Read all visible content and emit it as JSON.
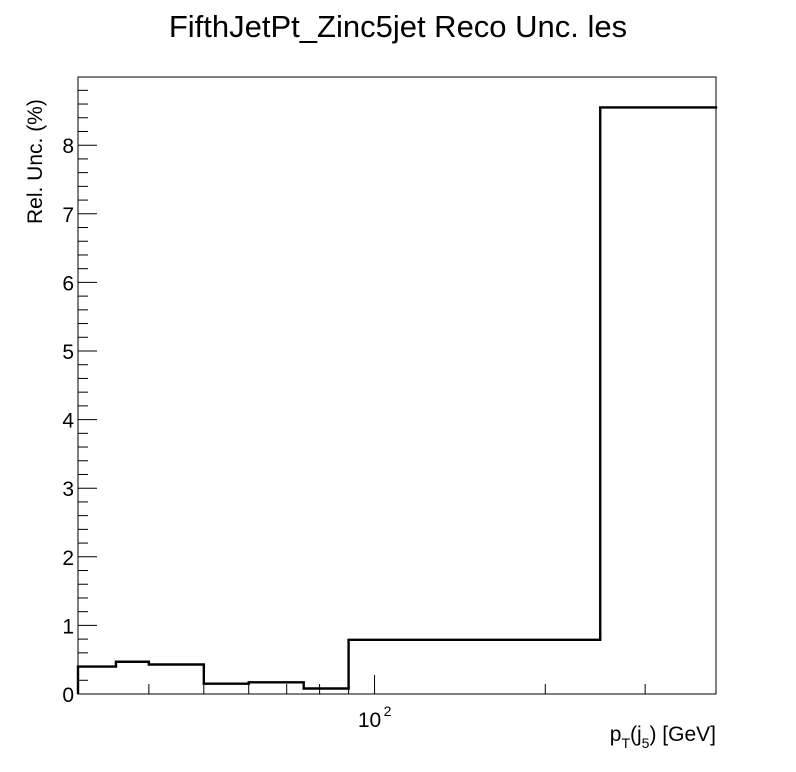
{
  "chart_data": {
    "type": "histogram",
    "title": "FifthJetPt_Zinc5jet Reco Unc. les",
    "xlabel": {
      "base": "p",
      "sub1": "T",
      "mid": "(j",
      "sub2": "5",
      "tail": ") [GeV]"
    },
    "ylabel": "Rel. Unc. (%)",
    "x_scale": "log",
    "xlim": [
      30,
      400
    ],
    "ylim": [
      0,
      9
    ],
    "x_tick_labels": [
      {
        "value": 100,
        "base": "10",
        "exp": "2"
      }
    ],
    "y_tick_labels": [
      "0",
      "1",
      "2",
      "3",
      "4",
      "5",
      "6",
      "7",
      "8"
    ],
    "grid": false,
    "bins": [
      {
        "low": 30,
        "high": 35,
        "value": 0.4
      },
      {
        "low": 35,
        "high": 40,
        "value": 0.47
      },
      {
        "low": 40,
        "high": 50,
        "value": 0.43
      },
      {
        "low": 50,
        "high": 60,
        "value": 0.15
      },
      {
        "low": 60,
        "high": 75,
        "value": 0.17
      },
      {
        "low": 75,
        "high": 90,
        "value": 0.08
      },
      {
        "low": 90,
        "high": 250,
        "value": 0.79
      },
      {
        "low": 250,
        "high": 400,
        "value": 8.55
      }
    ]
  }
}
